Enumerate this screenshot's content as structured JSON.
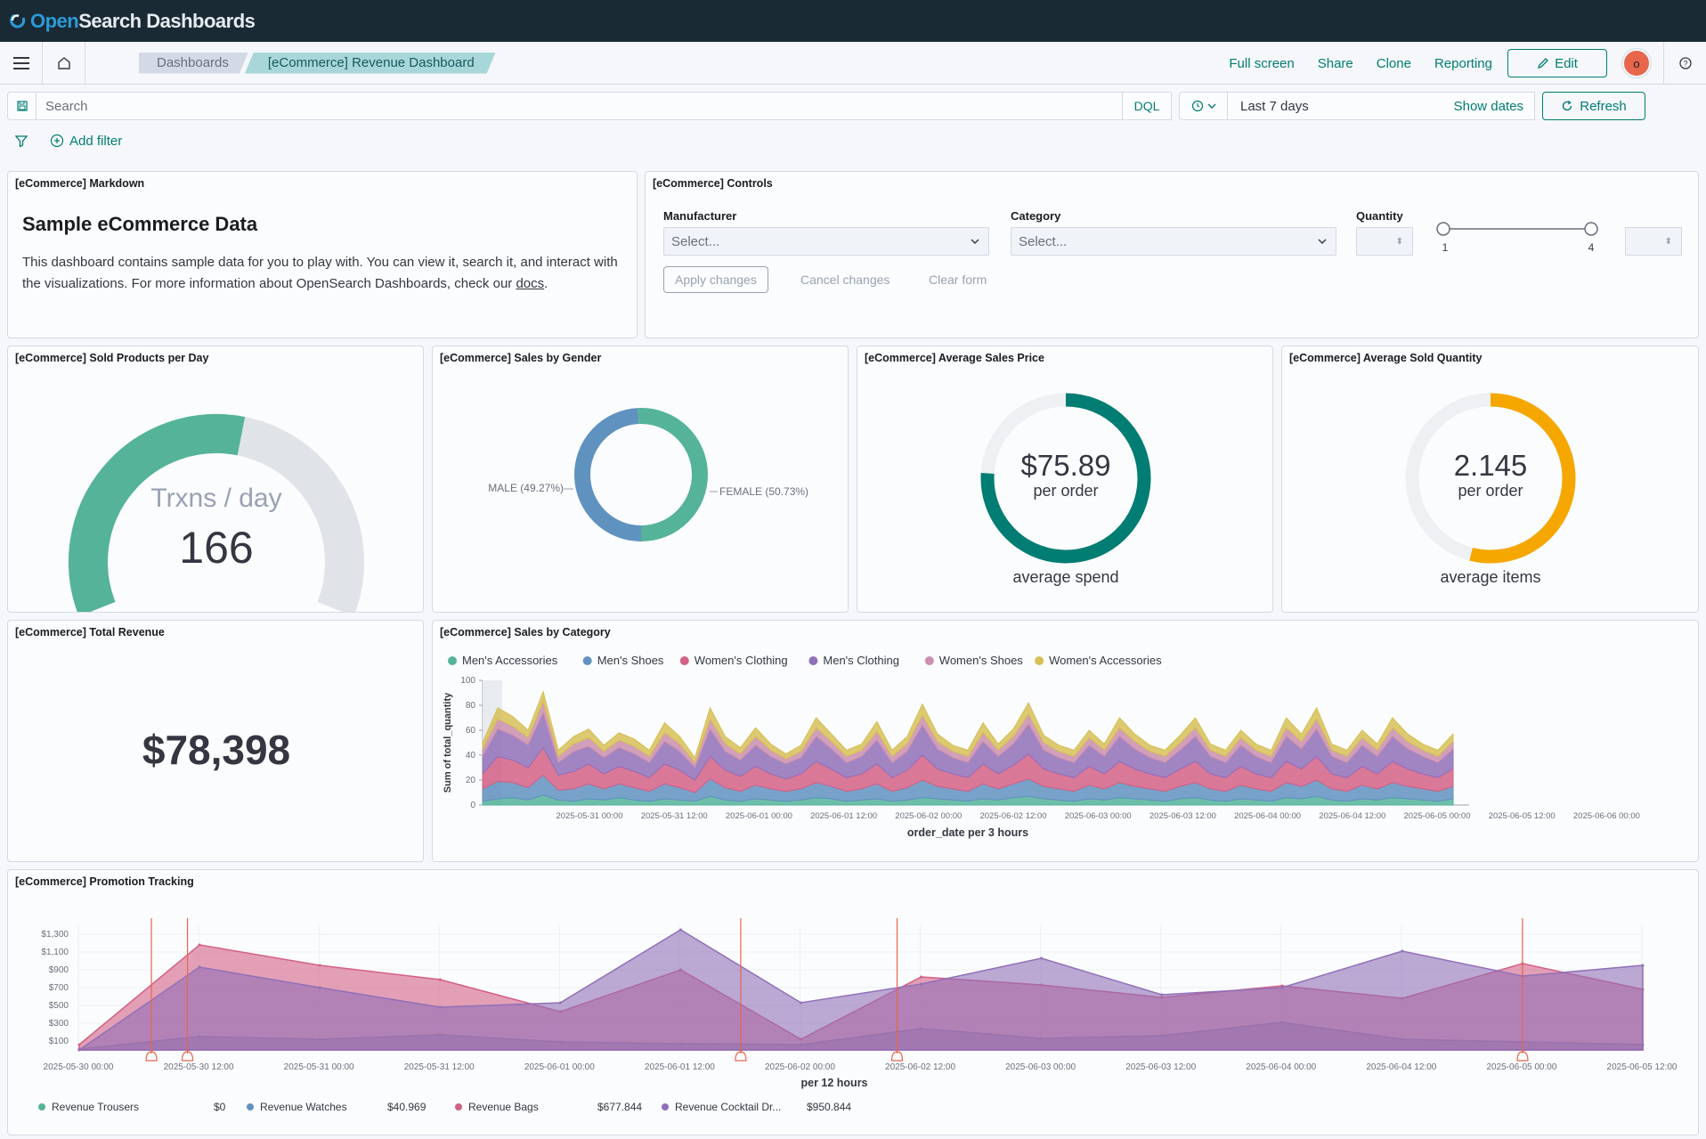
{
  "app": {
    "brand_open": "Open",
    "brand_rest": "Search Dashboards"
  },
  "nav": {
    "breadcrumbs": [
      "Dashboards",
      "[eCommerce] Revenue Dashboard"
    ],
    "actions": [
      "Full screen",
      "Share",
      "Clone",
      "Reporting"
    ],
    "edit_label": "Edit",
    "avatar_initial": "o"
  },
  "query": {
    "placeholder": "Search",
    "language": "DQL",
    "date_range": "Last 7 days",
    "show_dates": "Show dates",
    "refresh_label": "Refresh",
    "add_filter": "Add filter"
  },
  "panels": {
    "markdown": {
      "title": "[eCommerce] Markdown",
      "heading": "Sample eCommerce Data",
      "body": "This dashboard contains sample data for you to play with. You can view it, search it, and interact with the visualizations. For more information about OpenSearch Dashboards, check our ",
      "link": "docs",
      "suffix": "."
    },
    "controls": {
      "title": "[eCommerce] Controls",
      "manufacturer_label": "Manufacturer",
      "category_label": "Category",
      "quantity_label": "Quantity",
      "select_placeholder": "Select...",
      "slider_min": "1",
      "slider_max": "4",
      "apply": "Apply changes",
      "cancel": "Cancel changes",
      "clear": "Clear form"
    },
    "sold_per_day": {
      "title": "[eCommerce] Sold Products per Day",
      "label": "Trxns / day",
      "value": "166",
      "fill_fraction": 0.55
    },
    "sales_gender": {
      "title": "[eCommerce] Sales by Gender",
      "male_label": "MALE (49.27%)",
      "female_label": "FEMALE (50.73%)"
    },
    "avg_price": {
      "title": "[eCommerce] Average Sales Price",
      "value": "$75.89",
      "unit": "per order",
      "caption": "average spend",
      "fill_fraction": 0.76
    },
    "avg_qty": {
      "title": "[eCommerce] Average Sold Quantity",
      "value": "2.145",
      "unit": "per order",
      "caption": "average items",
      "fill_fraction": 0.54
    },
    "total_revenue": {
      "title": "[eCommerce] Total Revenue",
      "value": "$78,398"
    },
    "sales_category": {
      "title": "[eCommerce] Sales by Category"
    },
    "promotion": {
      "title": "[eCommerce] Promotion Tracking"
    }
  },
  "colors": {
    "teal": "#54b399",
    "blue": "#6092c0",
    "pink": "#d36086",
    "purple": "#9170b8",
    "lightpink": "#ca8eae",
    "yellow": "#d6bf57",
    "darkteal": "#017d73",
    "orange": "#f5a700",
    "gray": "#e0e3e8"
  },
  "chart_data": [
    {
      "type": "pie",
      "title": "",
      "categories": [
        "MALE",
        "FEMALE"
      ],
      "values": [
        49.27,
        50.73
      ]
    },
    {
      "type": "area",
      "title": "",
      "xlabel": "order_date per 3 hours",
      "ylabel": "Sum of total_quantity",
      "ylim": [
        0,
        100
      ],
      "yticks": [
        0,
        20,
        40,
        60,
        80,
        100
      ],
      "xticks": [
        "2025-05-31 00:00",
        "2025-05-31 12:00",
        "2025-06-01 00:00",
        "2025-06-01 12:00",
        "2025-06-02 00:00",
        "2025-06-02 12:00",
        "2025-06-03 00:00",
        "2025-06-03 12:00",
        "2025-06-04 00:00",
        "2025-06-04 12:00",
        "2025-06-05 00:00",
        "2025-06-05 12:00",
        "2025-06-06 00:00"
      ],
      "legend": "top",
      "stacked": true,
      "series": [
        {
          "name": "Men's Accessories",
          "color": "#54b399",
          "values": [
            3,
            5,
            6,
            4,
            8,
            4,
            3,
            5,
            4,
            6,
            4,
            3,
            5,
            4,
            3,
            7,
            4,
            3,
            5,
            4,
            3,
            4,
            6,
            5,
            3,
            4,
            5,
            3,
            4,
            6,
            5,
            4,
            3,
            5,
            4,
            6,
            7,
            5,
            4,
            3,
            5,
            4,
            6,
            5,
            4,
            3,
            5,
            6,
            4,
            3,
            5,
            4,
            3,
            6,
            5,
            7,
            4,
            3,
            5,
            4,
            6,
            5,
            4,
            3,
            5
          ]
        },
        {
          "name": "Men's Shoes",
          "color": "#6092c0",
          "values": [
            10,
            14,
            12,
            10,
            16,
            8,
            10,
            12,
            9,
            11,
            10,
            8,
            12,
            10,
            7,
            14,
            10,
            8,
            11,
            9,
            8,
            9,
            12,
            10,
            8,
            9,
            12,
            8,
            10,
            14,
            10,
            9,
            8,
            12,
            9,
            11,
            14,
            10,
            9,
            8,
            11,
            9,
            12,
            10,
            9,
            8,
            10,
            12,
            9,
            8,
            11,
            9,
            8,
            12,
            10,
            13,
            9,
            8,
            11,
            9,
            12,
            10,
            9,
            8,
            10
          ]
        },
        {
          "name": "Women's Clothing",
          "color": "#d36086",
          "values": [
            12,
            20,
            18,
            16,
            22,
            12,
            14,
            16,
            12,
            14,
            13,
            11,
            16,
            14,
            10,
            18,
            14,
            12,
            15,
            12,
            10,
            12,
            17,
            14,
            11,
            12,
            16,
            11,
            14,
            20,
            14,
            12,
            11,
            16,
            12,
            15,
            20,
            14,
            12,
            11,
            15,
            12,
            17,
            14,
            12,
            11,
            14,
            17,
            12,
            11,
            15,
            12,
            11,
            17,
            14,
            19,
            12,
            11,
            15,
            12,
            17,
            14,
            12,
            11,
            14
          ]
        },
        {
          "name": "Men's Clothing",
          "color": "#9170b8",
          "values": [
            14,
            22,
            20,
            18,
            28,
            10,
            16,
            14,
            13,
            15,
            14,
            12,
            18,
            15,
            10,
            22,
            15,
            13,
            17,
            14,
            12,
            13,
            20,
            16,
            12,
            14,
            19,
            12,
            15,
            24,
            16,
            13,
            12,
            18,
            14,
            17,
            24,
            15,
            13,
            12,
            17,
            14,
            20,
            16,
            13,
            12,
            15,
            20,
            14,
            12,
            17,
            14,
            12,
            20,
            16,
            22,
            14,
            12,
            17,
            14,
            20,
            16,
            14,
            12,
            16
          ]
        },
        {
          "name": "Women's Shoes",
          "color": "#ca8eae",
          "values": [
            6,
            8,
            7,
            6,
            9,
            5,
            6,
            7,
            5,
            6,
            6,
            5,
            7,
            6,
            4,
            8,
            6,
            5,
            7,
            5,
            4,
            5,
            7,
            6,
            5,
            5,
            7,
            5,
            6,
            8,
            6,
            5,
            5,
            7,
            5,
            6,
            8,
            6,
            5,
            5,
            6,
            5,
            7,
            6,
            5,
            5,
            6,
            7,
            5,
            5,
            6,
            5,
            5,
            7,
            6,
            8,
            5,
            5,
            6,
            5,
            7,
            6,
            5,
            5,
            6
          ]
        },
        {
          "name": "Women's Accessories",
          "color": "#d6bf57",
          "values": [
            5,
            9,
            8,
            6,
            8,
            5,
            6,
            7,
            5,
            6,
            6,
            5,
            8,
            6,
            4,
            9,
            6,
            5,
            7,
            5,
            4,
            5,
            8,
            6,
            5,
            5,
            8,
            5,
            6,
            9,
            6,
            5,
            5,
            8,
            5,
            6,
            9,
            6,
            5,
            5,
            6,
            5,
            8,
            6,
            5,
            5,
            6,
            8,
            5,
            5,
            6,
            5,
            5,
            8,
            6,
            9,
            5,
            5,
            6,
            5,
            8,
            6,
            5,
            5,
            6
          ]
        }
      ]
    },
    {
      "type": "area",
      "title": "",
      "xlabel": "per 12 hours",
      "ylabel": "",
      "ylim": [
        0,
        1400
      ],
      "yticks": [
        "$100",
        "$300",
        "$500",
        "$700",
        "$900",
        "$1,100",
        "$1,300"
      ],
      "ytick_values": [
        100,
        300,
        500,
        700,
        900,
        1100,
        1300
      ],
      "xticks": [
        "2025-05-30 00:00",
        "2025-05-30 12:00",
        "2025-05-31 00:00",
        "2025-05-31 12:00",
        "2025-06-01 00:00",
        "2025-06-01 12:00",
        "2025-06-02 00:00",
        "2025-06-02 12:00",
        "2025-06-03 00:00",
        "2025-06-03 12:00",
        "2025-06-04 00:00",
        "2025-06-04 12:00",
        "2025-06-05 00:00",
        "2025-06-05 12:00"
      ],
      "legend": "bottom",
      "legend_values": [
        "$0",
        "$40.969",
        "$677.844",
        "$950.844"
      ],
      "annotation_times": [
        0.6,
        0.9,
        5.5,
        6.8,
        12.0
      ],
      "series": [
        {
          "name": "Revenue Trousers",
          "color": "#54b399",
          "values": [
            0,
            0,
            0,
            0,
            0,
            0,
            0,
            0,
            0,
            0,
            0,
            0,
            0,
            0
          ]
        },
        {
          "name": "Revenue Watches",
          "color": "#6092c0",
          "values": [
            10,
            150,
            120,
            170,
            90,
            70,
            60,
            240,
            130,
            160,
            310,
            120,
            90,
            60
          ]
        },
        {
          "name": "Revenue Bags",
          "color": "#d36086",
          "values": [
            60,
            1180,
            950,
            790,
            430,
            900,
            120,
            820,
            730,
            590,
            720,
            580,
            970,
            680
          ]
        },
        {
          "name": "Revenue Cocktail Dr...",
          "color": "#9170b8",
          "values": [
            0,
            930,
            700,
            480,
            530,
            1350,
            530,
            740,
            1030,
            620,
            700,
            1110,
            830,
            950
          ]
        }
      ]
    }
  ]
}
